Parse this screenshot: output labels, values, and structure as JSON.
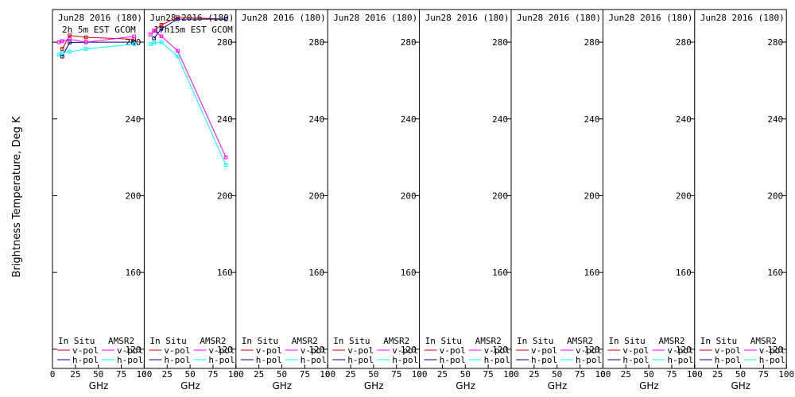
{
  "y_axis_label": "Brightness Temperature, Deg K",
  "legend": {
    "in_situ": "In Situ",
    "amsr2": "AMSR2",
    "v_pol": "v-pol",
    "h_pol": "h-pol"
  },
  "colors": {
    "insitu_v": "#cc0000",
    "insitu_h": "#000080",
    "amsr2_v": "#ff00ff",
    "amsr2_h": "#00ffff"
  },
  "chart_data": {
    "type": "line",
    "panel_count": 8,
    "ylim": [
      110,
      297
    ],
    "yticks": [
      120,
      160,
      200,
      240,
      280
    ],
    "xlim": [
      0,
      100
    ],
    "xticks": [
      0,
      25,
      50,
      75,
      100
    ],
    "xlabel": "GHz",
    "grid": false,
    "panels": [
      {
        "title": "Jun28 2016 (180)",
        "subtitle": "2h 5m EST GCOM",
        "series": [
          {
            "name": "In Situ v-pol",
            "x": [
              10.7,
              18.7,
              36.5,
              89
            ],
            "y": [
              276.5,
              283.5,
              282.5,
              281.5
            ]
          },
          {
            "name": "In Situ h-pol",
            "x": [
              10.7,
              18.7,
              36.5,
              89
            ],
            "y": [
              272.5,
              279.8,
              280,
              280
            ]
          },
          {
            "name": "AMSR2 v-pol",
            "x": [
              6.9,
              10.7,
              18.7,
              36.5,
              89
            ],
            "y": [
              280,
              280.5,
              281.5,
              280,
              283
            ]
          },
          {
            "name": "AMSR2 h-pol",
            "x": [
              6.9,
              10.7,
              18.7,
              36.5,
              89
            ],
            "y": [
              273.5,
              274.5,
              275,
              276.5,
              279
            ]
          }
        ]
      },
      {
        "title": "Jun28 2016 (180)",
        "subtitle": "17h15m EST GCOM",
        "series": [
          {
            "name": "In Situ v-pol",
            "x": [
              10.7,
              18.7,
              36.5,
              89
            ],
            "y": [
              286,
              289,
              293,
              292
            ]
          },
          {
            "name": "In Situ h-pol",
            "x": [
              10.7,
              18.7,
              36.5,
              89
            ],
            "y": [
              282,
              287,
              292,
              292
            ]
          },
          {
            "name": "AMSR2 v-pol",
            "x": [
              6.9,
              10.7,
              18.7,
              36.5,
              89
            ],
            "y": [
              284,
              286,
              283,
              275.5,
              220
            ]
          },
          {
            "name": "AMSR2 h-pol",
            "x": [
              6.9,
              10.7,
              18.7,
              36.5,
              89
            ],
            "y": [
              279,
              279.5,
              280,
              272.5,
              216
            ]
          }
        ]
      },
      {
        "title": "Jun28 2016 (180)",
        "subtitle": "",
        "series": []
      },
      {
        "title": "Jun28 2016 (180)",
        "subtitle": "",
        "series": []
      },
      {
        "title": "Jun28 2016 (180)",
        "subtitle": "",
        "series": []
      },
      {
        "title": "Jun28 2016 (180)",
        "subtitle": "",
        "series": []
      },
      {
        "title": "Jun28 2016 (180)",
        "subtitle": "",
        "series": []
      },
      {
        "title": "Jun28 2016 (180)",
        "subtitle": "",
        "series": []
      }
    ]
  }
}
